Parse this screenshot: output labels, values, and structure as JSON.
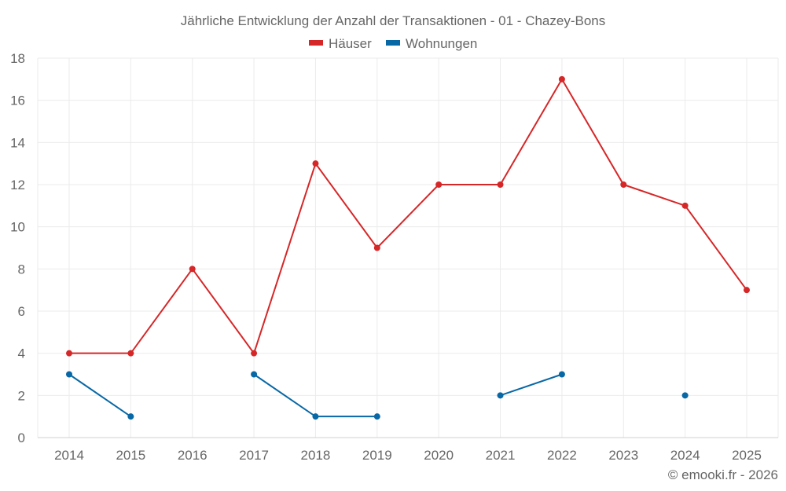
{
  "chart_data": {
    "type": "line",
    "title": "Jährliche Entwicklung der Anzahl der Transaktionen - 01 - Chazey-Bons",
    "categories": [
      "2014",
      "2015",
      "2016",
      "2017",
      "2018",
      "2019",
      "2020",
      "2021",
      "2022",
      "2023",
      "2024",
      "2025"
    ],
    "series": [
      {
        "name": "Häuser",
        "color": "#d62728",
        "values": [
          4,
          4,
          8,
          4,
          13,
          9,
          12,
          12,
          17,
          12,
          11,
          7
        ]
      },
      {
        "name": "Wohnungen",
        "color": "#0868a6",
        "values": [
          3,
          1,
          null,
          3,
          1,
          1,
          null,
          2,
          3,
          null,
          2,
          null
        ]
      }
    ],
    "xlabel": "",
    "ylabel": "",
    "ylim": [
      0,
      18
    ],
    "yticks": [
      0,
      2,
      4,
      6,
      8,
      10,
      12,
      14,
      16,
      18
    ],
    "grid": true,
    "legend_position": "top"
  },
  "credit": "© emooki.fr - 2026"
}
